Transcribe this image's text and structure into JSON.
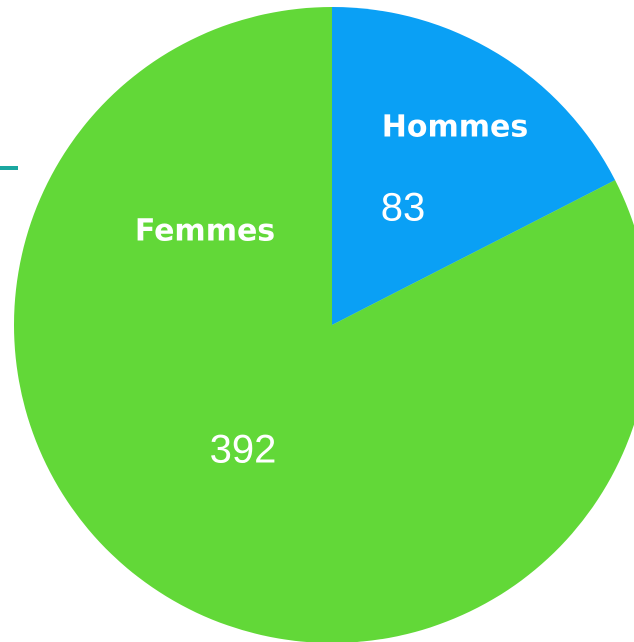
{
  "chart_data": {
    "type": "pie",
    "categories": [
      "Hommes",
      "Femmes"
    ],
    "values": [
      83,
      392
    ],
    "colors": [
      "#0aa0f5",
      "#62d838"
    ]
  }
}
